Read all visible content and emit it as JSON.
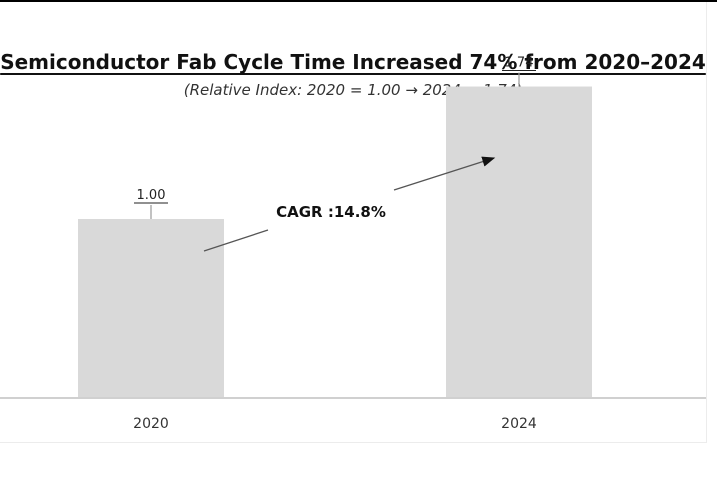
{
  "chart_data": {
    "type": "bar",
    "title": "Semiconductor Fab Cycle Time Increased 74% from 2020–2024",
    "subtitle": "(Relative Index: 2020 = 1.00 → 2024 = 1.74)",
    "categories": [
      "2020",
      "2024"
    ],
    "values": [
      1.0,
      1.74
    ],
    "data_labels": [
      "1.00",
      "1.74"
    ],
    "ylim": [
      0,
      2.0
    ],
    "grid": false,
    "annotation": "CAGR :14.8%",
    "colors": {
      "bar": "#d9d9d9",
      "axis": "#d0d0d0",
      "text": "#111111"
    }
  }
}
